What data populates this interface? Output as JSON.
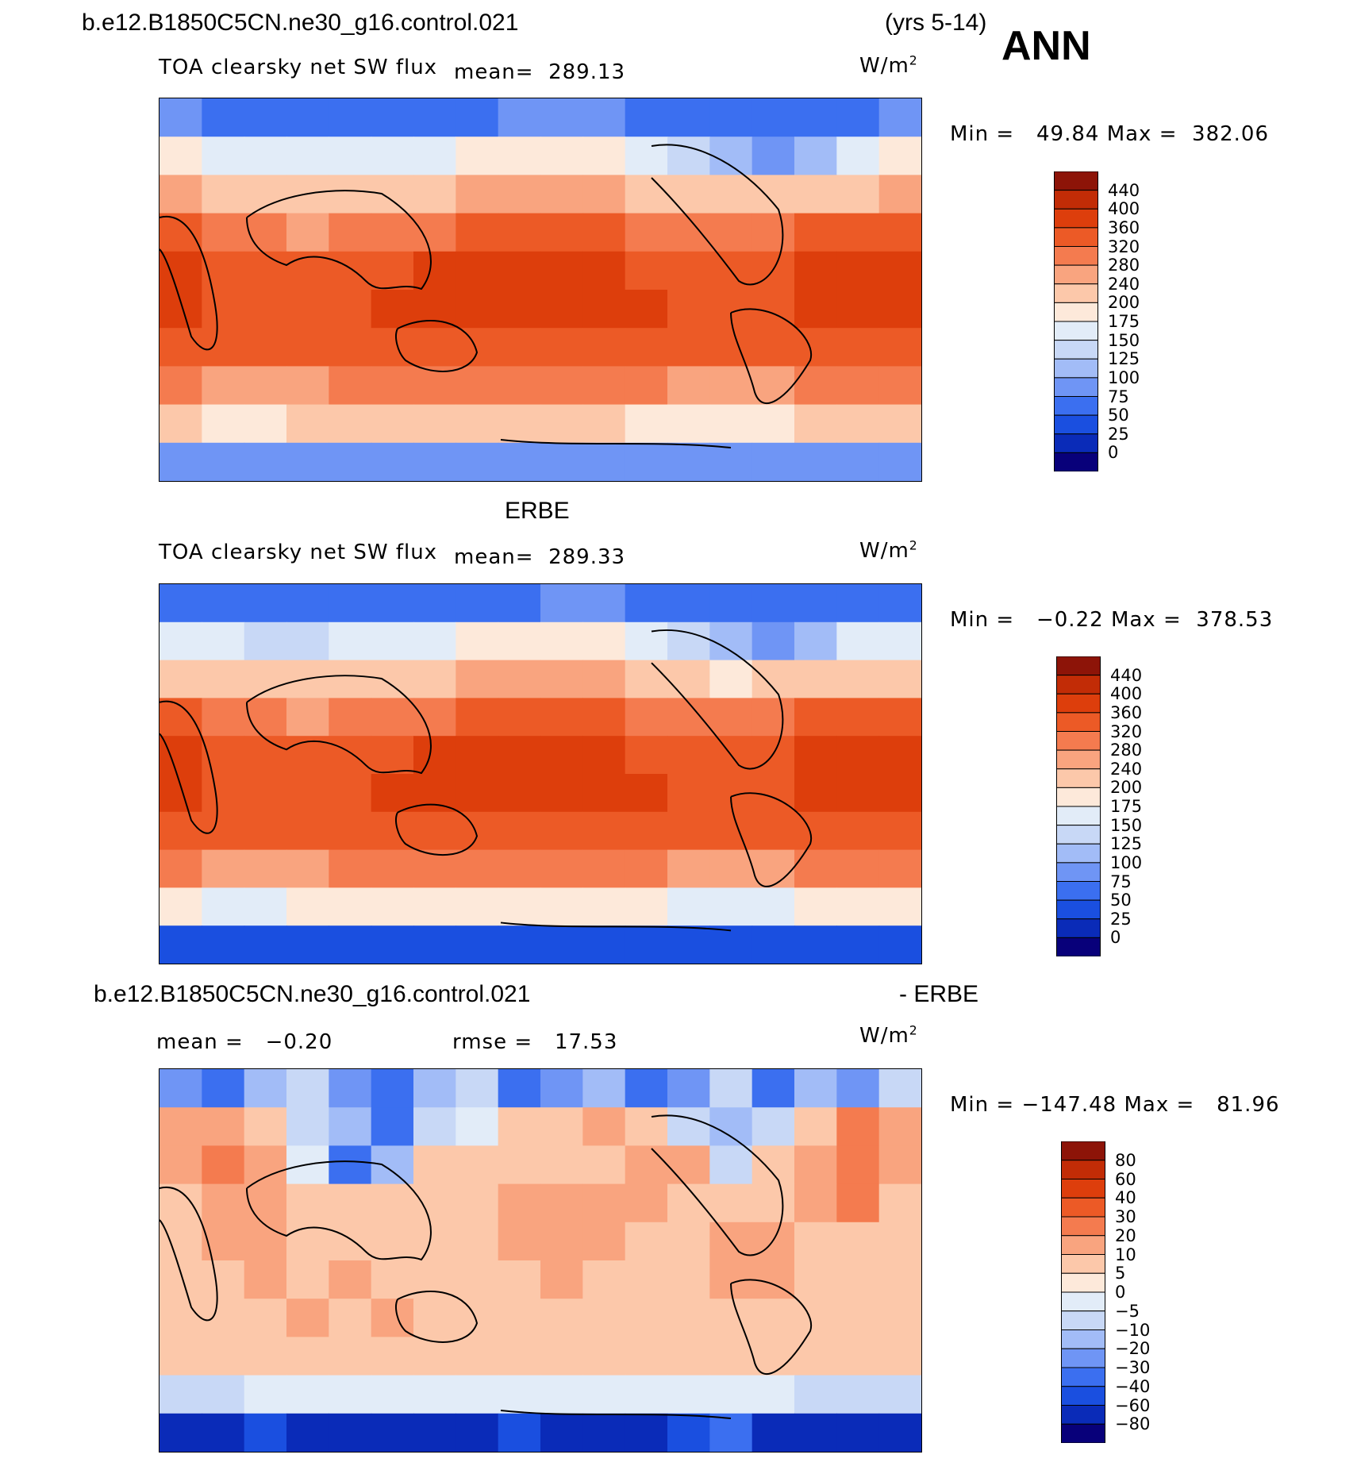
{
  "header": {
    "case_name": "b.e12.B1850C5CN.ne30_g16.control.021",
    "years": "(yrs 5-14)",
    "season": "ANN"
  },
  "colors": {
    "abs_scale": [
      "#08007a",
      "#0a2bb8",
      "#1a4fe0",
      "#3b6ff0",
      "#6f95f5",
      "#a2bcf7",
      "#c8d8f6",
      "#e2ecf8",
      "#fde9da",
      "#fcc8aa",
      "#f9a47f",
      "#f47b4f",
      "#ec5a26",
      "#dd3e0c",
      "#c22c06",
      "#8d1408"
    ],
    "diff_scale": [
      "#08007a",
      "#0a2bb8",
      "#1a4fe0",
      "#3b6ff0",
      "#6f95f5",
      "#a2bcf7",
      "#c8d8f6",
      "#e2ecf8",
      "#fde9da",
      "#fcc8aa",
      "#f9a47f",
      "#f47b4f",
      "#ec5a26",
      "#dd3e0c",
      "#c22c06",
      "#8d1408"
    ]
  },
  "chart_data": [
    {
      "type": "heatmap",
      "title": "TOA clearsky net SW flux",
      "units": "W/m",
      "units_sup": "2",
      "mean_label": "mean=",
      "mean_value": "289.13",
      "min_label": "Min =",
      "min_value": "49.84",
      "max_label": "Max =",
      "max_value": "382.06",
      "colorbar_ticks": [
        "440",
        "400",
        "360",
        "320",
        "280",
        "240",
        "200",
        "175",
        "150",
        "125",
        "100",
        "75",
        "50",
        "25",
        "0"
      ],
      "values": [
        [
          75,
          70,
          65,
          60,
          60,
          60,
          65,
          70,
          75,
          80,
          80,
          70,
          60,
          55,
          55,
          60,
          70,
          75
        ],
        [
          175,
          160,
          150,
          150,
          150,
          160,
          170,
          180,
          185,
          190,
          180,
          150,
          130,
          110,
          90,
          100,
          170,
          175
        ],
        [
          240,
          235,
          220,
          210,
          200,
          215,
          235,
          245,
          250,
          255,
          250,
          220,
          200,
          200,
          200,
          210,
          235,
          240
        ],
        [
          320,
          300,
          280,
          260,
          280,
          300,
          315,
          320,
          320,
          320,
          320,
          300,
          290,
          280,
          300,
          320,
          320,
          320
        ],
        [
          360,
          350,
          340,
          330,
          345,
          355,
          360,
          360,
          360,
          360,
          360,
          350,
          345,
          350,
          355,
          360,
          360,
          360
        ],
        [
          365,
          355,
          345,
          345,
          355,
          360,
          365,
          365,
          365,
          365,
          365,
          360,
          350,
          345,
          350,
          360,
          365,
          365
        ],
        [
          345,
          335,
          330,
          330,
          335,
          330,
          345,
          350,
          350,
          350,
          350,
          345,
          340,
          330,
          330,
          345,
          345,
          345
        ],
        [
          280,
          270,
          270,
          275,
          280,
          285,
          285,
          285,
          285,
          285,
          285,
          280,
          275,
          270,
          270,
          280,
          280,
          280
        ],
        [
          200,
          195,
          195,
          200,
          200,
          200,
          200,
          200,
          200,
          200,
          200,
          195,
          195,
          195,
          195,
          200,
          200,
          200
        ],
        [
          80,
          75,
          75,
          75,
          75,
          75,
          75,
          75,
          75,
          80,
          80,
          80,
          75,
          75,
          75,
          80,
          80,
          80
        ]
      ]
    },
    {
      "type": "heatmap",
      "title": "TOA clearsky net SW flux",
      "heading": "ERBE",
      "units": "W/m",
      "units_sup": "2",
      "mean_label": "mean=",
      "mean_value": "289.33",
      "min_label": "Min =",
      "min_value": "−0.22",
      "max_label": "Max =",
      "max_value": "378.53",
      "colorbar_ticks": [
        "440",
        "400",
        "360",
        "320",
        "280",
        "240",
        "200",
        "175",
        "150",
        "125",
        "100",
        "75",
        "50",
        "25",
        "0"
      ],
      "values": [
        [
          70,
          65,
          60,
          60,
          60,
          60,
          60,
          65,
          70,
          75,
          80,
          70,
          60,
          55,
          50,
          55,
          65,
          70
        ],
        [
          160,
          150,
          140,
          145,
          150,
          155,
          165,
          175,
          180,
          185,
          175,
          150,
          130,
          110,
          90,
          100,
          165,
          165
        ],
        [
          235,
          230,
          215,
          205,
          200,
          210,
          230,
          240,
          245,
          250,
          245,
          215,
          200,
          195,
          200,
          205,
          230,
          235
        ],
        [
          320,
          300,
          280,
          265,
          280,
          300,
          315,
          320,
          320,
          320,
          320,
          300,
          290,
          280,
          300,
          320,
          320,
          320
        ],
        [
          360,
          350,
          340,
          330,
          345,
          355,
          360,
          360,
          360,
          360,
          360,
          350,
          345,
          350,
          355,
          360,
          360,
          360
        ],
        [
          365,
          355,
          345,
          345,
          355,
          360,
          365,
          365,
          365,
          365,
          365,
          360,
          350,
          345,
          350,
          360,
          365,
          365
        ],
        [
          345,
          335,
          330,
          330,
          335,
          330,
          345,
          350,
          350,
          350,
          350,
          345,
          340,
          330,
          330,
          345,
          345,
          345
        ],
        [
          280,
          270,
          270,
          275,
          280,
          285,
          285,
          285,
          285,
          285,
          285,
          280,
          275,
          270,
          270,
          280,
          280,
          280
        ],
        [
          175,
          170,
          170,
          175,
          180,
          180,
          180,
          180,
          180,
          180,
          180,
          175,
          170,
          170,
          170,
          175,
          175,
          175
        ],
        [
          40,
          35,
          35,
          35,
          35,
          40,
          40,
          40,
          40,
          45,
          45,
          40,
          40,
          40,
          35,
          40,
          40,
          40
        ]
      ]
    },
    {
      "type": "heatmap",
      "title": "b.e12.B1850C5CN.ne30_g16.control.021",
      "title_suffix": "- ERBE",
      "units": "W/m",
      "units_sup": "2",
      "mean_label": "mean =",
      "mean_value": "−0.20",
      "rmse_label": "rmse =",
      "rmse_value": "17.53",
      "min_label": "Min =",
      "min_value": "−147.48",
      "max_label": "Max =",
      "max_value": "81.96",
      "colorbar_ticks": [
        "80",
        "60",
        "40",
        "30",
        "20",
        "10",
        "5",
        "0",
        "−5",
        "−10",
        "−20",
        "−30",
        "−40",
        "−60",
        "−80"
      ],
      "values": [
        [
          -30,
          -40,
          -20,
          -10,
          -30,
          -40,
          -20,
          -10,
          -40,
          -30,
          -20,
          -40,
          -30,
          -10,
          -40,
          -20,
          -30,
          -10
        ],
        [
          10,
          15,
          5,
          -10,
          -20,
          -40,
          -10,
          -5,
          5,
          5,
          10,
          5,
          -10,
          -20,
          -10,
          5,
          20,
          10
        ],
        [
          15,
          20,
          10,
          -5,
          -40,
          -20,
          5,
          5,
          5,
          5,
          5,
          15,
          10,
          -10,
          5,
          10,
          20,
          15
        ],
        [
          5,
          10,
          15,
          5,
          5,
          5,
          5,
          5,
          10,
          10,
          10,
          10,
          5,
          5,
          5,
          10,
          20,
          5
        ],
        [
          5,
          10,
          15,
          5,
          5,
          5,
          5,
          5,
          10,
          15,
          10,
          5,
          5,
          10,
          10,
          5,
          5,
          5
        ],
        [
          5,
          5,
          10,
          5,
          10,
          5,
          5,
          5,
          5,
          10,
          5,
          5,
          5,
          10,
          10,
          5,
          5,
          5
        ],
        [
          5,
          5,
          5,
          10,
          5,
          10,
          5,
          5,
          5,
          5,
          5,
          5,
          5,
          5,
          5,
          5,
          5,
          5
        ],
        [
          5,
          5,
          5,
          5,
          5,
          5,
          5,
          5,
          5,
          5,
          5,
          5,
          5,
          5,
          5,
          5,
          5,
          5
        ],
        [
          -10,
          -10,
          -5,
          -5,
          -5,
          -5,
          -5,
          -5,
          -5,
          -5,
          -5,
          -5,
          -5,
          -5,
          -5,
          -10,
          -10,
          -10
        ],
        [
          -80,
          -80,
          -60,
          -70,
          -80,
          -80,
          -70,
          -80,
          -60,
          -80,
          -80,
          -70,
          -60,
          -40,
          -80,
          -80,
          -80,
          -80
        ]
      ]
    }
  ]
}
